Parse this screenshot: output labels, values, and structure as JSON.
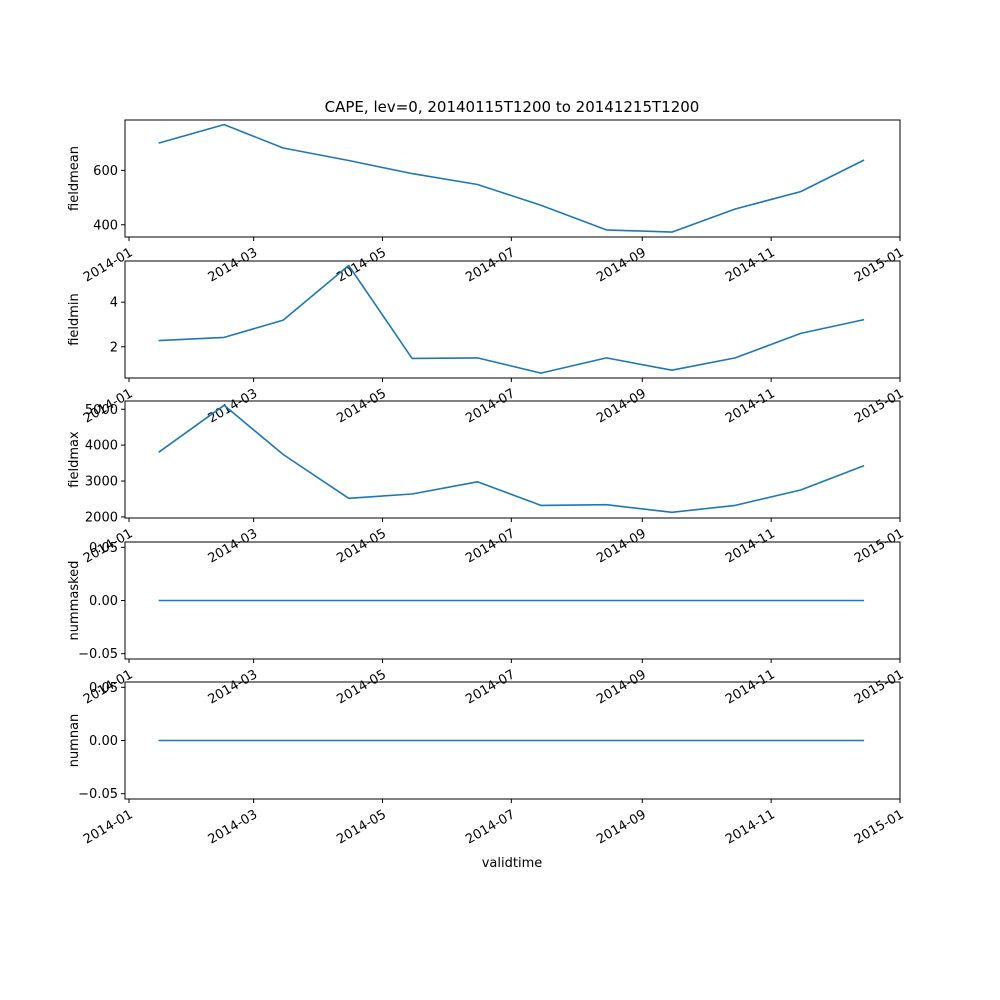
{
  "chart_data": {
    "type": "line",
    "title": "CAPE, lev=0, 20140115T1200 to 20141215T1200",
    "xlabel": "validtime",
    "line_color": "#1f77b4",
    "x_ticks": [
      "2014-01",
      "2014-03",
      "2014-05",
      "2014-07",
      "2014-09",
      "2014-11",
      "2015-01"
    ],
    "xlim": [
      "2014-01-01",
      "2015-01-01"
    ],
    "x": [
      "2014-01-15",
      "2014-02-15",
      "2014-03-15",
      "2014-04-15",
      "2014-05-15",
      "2014-06-15",
      "2014-07-15",
      "2014-08-15",
      "2014-09-15",
      "2014-10-15",
      "2014-11-15",
      "2014-12-15"
    ],
    "panels": [
      {
        "ylabel": "fieldmean",
        "yticks": [
          "400",
          "600"
        ],
        "ytick_values": [
          400,
          600
        ],
        "ylim": [
          355,
          785
        ],
        "values": [
          700,
          768,
          682,
          636,
          588,
          548,
          472,
          381,
          373,
          458,
          522,
          638
        ]
      },
      {
        "ylabel": "fieldmin",
        "yticks": [
          "2",
          "4"
        ],
        "ytick_values": [
          2,
          4
        ],
        "ylim": [
          0.6,
          5.85
        ],
        "values": [
          2.28,
          2.42,
          3.2,
          5.65,
          1.48,
          1.5,
          0.82,
          1.5,
          0.95,
          1.5,
          2.6,
          3.22
        ]
      },
      {
        "ylabel": "fieldmax",
        "yticks": [
          "2000",
          "3000",
          "4000",
          "5000"
        ],
        "ytick_values": [
          2000,
          3000,
          4000,
          5000
        ],
        "ylim": [
          1970,
          5230
        ],
        "values": [
          3800,
          5110,
          3740,
          2520,
          2640,
          2980,
          2320,
          2340,
          2130,
          2320,
          2750,
          3430
        ]
      },
      {
        "ylabel": "nummasked",
        "yticks": [
          "−0.05",
          "0.00",
          "0.05"
        ],
        "ytick_values": [
          -0.05,
          0,
          0.05
        ],
        "ylim": [
          -0.055,
          0.055
        ],
        "values": [
          0,
          0,
          0,
          0,
          0,
          0,
          0,
          0,
          0,
          0,
          0,
          0
        ]
      },
      {
        "ylabel": "numnan",
        "yticks": [
          "−0.05",
          "0.00",
          "0.05"
        ],
        "ytick_values": [
          -0.05,
          0,
          0.05
        ],
        "ylim": [
          -0.055,
          0.055
        ],
        "values": [
          0,
          0,
          0,
          0,
          0,
          0,
          0,
          0,
          0,
          0,
          0,
          0
        ]
      }
    ]
  }
}
